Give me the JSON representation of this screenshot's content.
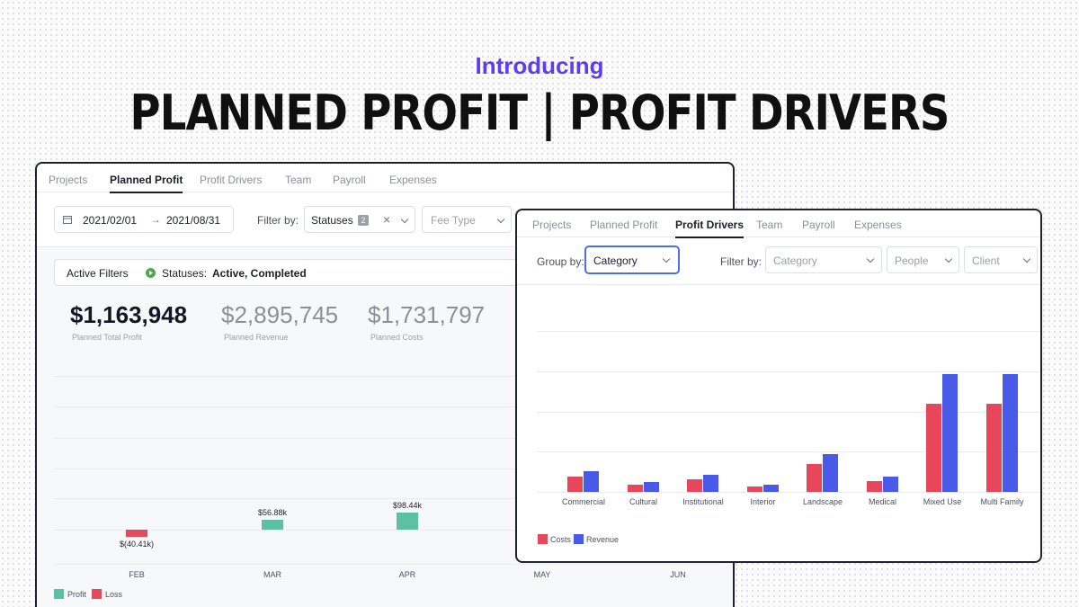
{
  "intro": "Introducing",
  "headline": "PLANNED PROFIT | PROFIT DRIVERS",
  "colors": {
    "accent": "#5b3ef2",
    "profit": "#5dbfa3",
    "loss": "#e14b5c",
    "costs": "#e8465a",
    "revenue": "#4a5ae8"
  },
  "panel_a": {
    "tabs": [
      "Projects",
      "Planned Profit",
      "Profit Drivers",
      "Team",
      "Payroll",
      "Expenses"
    ],
    "active_tab": "Planned Profit",
    "date_start": "2021/02/01",
    "date_end": "2021/08/31",
    "filter_label": "Filter by:",
    "statuses_label": "Statuses",
    "statuses_count": "2",
    "fee_type_placeholder": "Fee Type",
    "active_filters_label": "Active Filters",
    "active_filters_key": "Statuses:",
    "active_filters_value": "Active, Completed",
    "kpis": [
      {
        "value": "$1,163,948",
        "label": "Planned Total Profit"
      },
      {
        "value": "$2,895,745",
        "label": "Planned Revenue"
      },
      {
        "value": "$1,731,797",
        "label": "Planned Costs"
      }
    ],
    "legend": [
      "Profit",
      "Loss"
    ]
  },
  "panel_b": {
    "tabs": [
      "Projects",
      "Planned Profit",
      "Profit Drivers",
      "Team",
      "Payroll",
      "Expenses"
    ],
    "active_tab": "Profit Drivers",
    "group_by_label": "Group by:",
    "group_by_value": "Category",
    "filter_label": "Filter by:",
    "filter_category_placeholder": "Category",
    "filter_people_placeholder": "People",
    "filter_client_placeholder": "Client",
    "legend": [
      "Costs",
      "Revenue"
    ]
  },
  "chart_data": [
    {
      "type": "bar",
      "categories": [
        "FEB",
        "MAR",
        "APR",
        "MAY",
        "JUN"
      ],
      "series": [
        {
          "name": "Profit",
          "values": [
            -40.41,
            56.88,
            98.44,
            null,
            null
          ]
        }
      ],
      "data_labels": [
        "$(40.41k)",
        "$56.88k",
        "$98.44k",
        "",
        ""
      ],
      "legend": [
        "Profit",
        "Loss"
      ],
      "grid": true
    },
    {
      "type": "bar",
      "categories": [
        "Commercial",
        "Cultural",
        "Institutional",
        "Interior",
        "Landscape",
        "Medical",
        "Mixed Use",
        "Multi Family"
      ],
      "series": [
        {
          "name": "Costs",
          "values": [
            14,
            7,
            12,
            5,
            26,
            10,
            82,
            82
          ]
        },
        {
          "name": "Revenue",
          "values": [
            19,
            9,
            16,
            7,
            35,
            14,
            109,
            109
          ]
        }
      ],
      "ylim": [
        0,
        150
      ],
      "grid": true,
      "legend_position": "bottom-left"
    }
  ]
}
